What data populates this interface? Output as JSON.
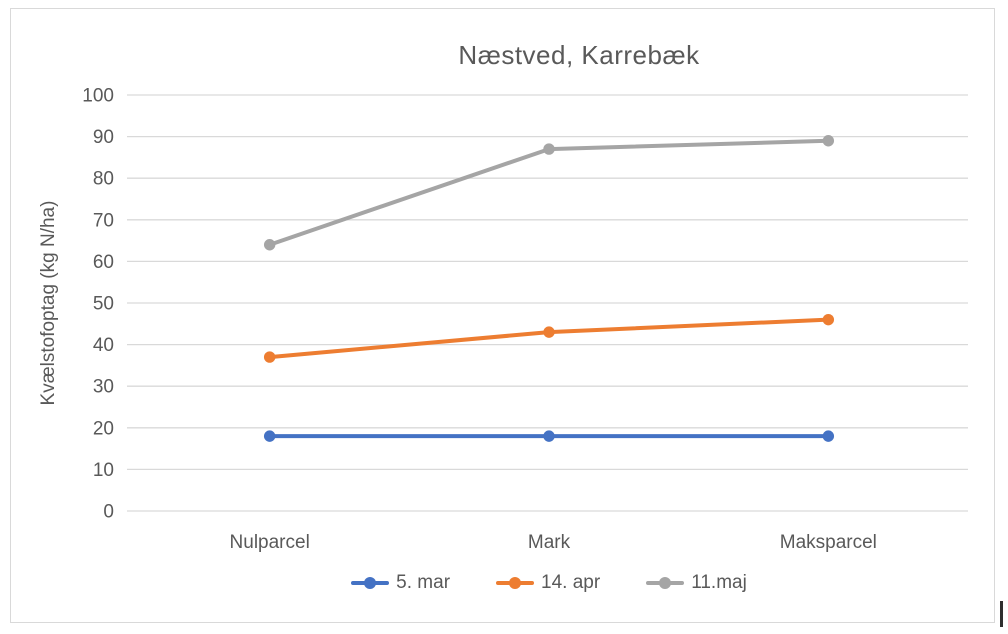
{
  "chart_data": {
    "type": "line",
    "title": "Næstved, Karrebæk",
    "xlabel": "",
    "ylabel": "Kvælstofoptag (kg N/ha)",
    "categories": [
      "Nulparcel",
      "Mark",
      "Maksparcel"
    ],
    "series": [
      {
        "name": "5. mar",
        "color": "#4472C4",
        "values": [
          18,
          18,
          18
        ]
      },
      {
        "name": "14. apr",
        "color": "#ED7D31",
        "values": [
          37,
          43,
          46
        ]
      },
      {
        "name": "11.maj",
        "color": "#A5A5A5",
        "values": [
          64,
          87,
          89
        ]
      }
    ],
    "ylim": [
      0,
      100
    ],
    "ytick_step": 10,
    "grid": true,
    "legend_position": "bottom"
  },
  "style": {
    "text_color": "#595959",
    "gridline_color": "#d9d9d9",
    "frame_border_color": "#d9d9d9",
    "background": "#ffffff"
  }
}
